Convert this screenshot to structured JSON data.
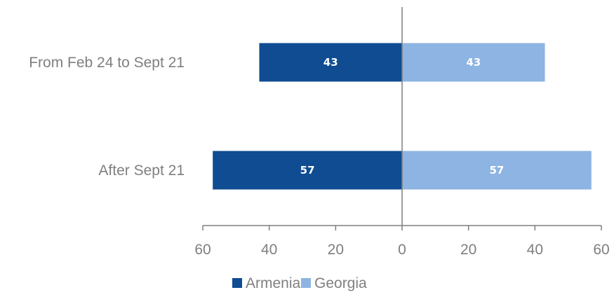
{
  "colors": {
    "armenia": "#0f4c92",
    "georgia": "#8db4e2",
    "axis": "#7f7f7f",
    "text": "#7f7f7f"
  },
  "chart_data": {
    "type": "bar",
    "orientation": "horizontal",
    "layout": "diverging",
    "categories": [
      "From Feb 24 to Sept 21",
      "After Sept 21"
    ],
    "series": [
      {
        "name": "Armenia",
        "values": [
          43,
          57
        ],
        "side": "left"
      },
      {
        "name": "Georgia",
        "values": [
          43,
          57
        ],
        "side": "right"
      }
    ],
    "xlim": [
      -60,
      60
    ],
    "x_ticks": [
      -60,
      -40,
      -20,
      0,
      20,
      40,
      60
    ],
    "x_tick_labels": [
      "60",
      "40",
      "20",
      "0",
      "20",
      "40",
      "60"
    ],
    "grid": false,
    "legend_position": "bottom",
    "title": "",
    "xlabel": "",
    "ylabel": ""
  }
}
